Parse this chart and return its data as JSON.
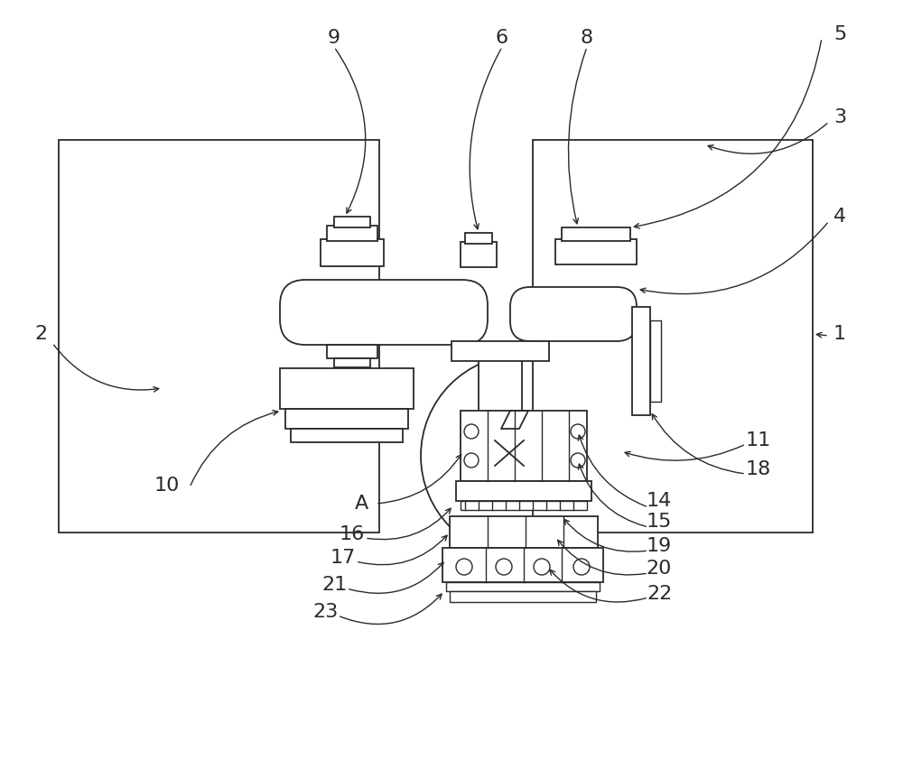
{
  "background_color": "#ffffff",
  "line_color": "#2a2a2a",
  "fig_width": 10.0,
  "fig_height": 8.52,
  "dpi": 100
}
